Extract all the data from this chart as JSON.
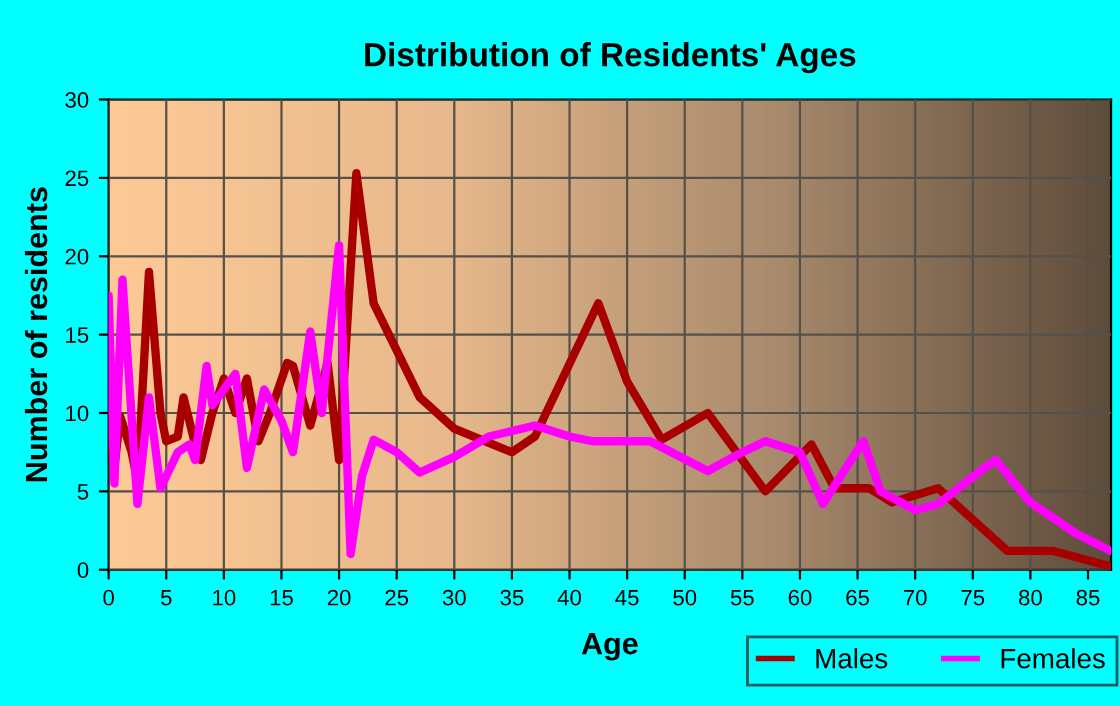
{
  "chart_data": {
    "type": "line",
    "title": "Distribution of Residents' Ages",
    "xlabel": "Age",
    "ylabel": "Number of residents",
    "xlim": [
      0,
      87
    ],
    "xticks": [
      0,
      5,
      10,
      15,
      20,
      25,
      30,
      35,
      40,
      45,
      50,
      55,
      60,
      65,
      70,
      75,
      80,
      85
    ],
    "ylim": [
      0,
      30
    ],
    "yticks": [
      0,
      5,
      10,
      15,
      20,
      25,
      30
    ],
    "grid": true,
    "legend": "bottom right",
    "marker": "none",
    "line_style": "solid",
    "series": [
      {
        "name": "Males",
        "color": "#a80000",
        "x": [
          0,
          0.5,
          1,
          2,
          2.5,
          3.5,
          4.5,
          5,
          6,
          6.5,
          7.5,
          8,
          9,
          10,
          11,
          12,
          13,
          14,
          15.5,
          16,
          17.5,
          19,
          20,
          21.5,
          23,
          25,
          27,
          30,
          35,
          37,
          42.5,
          45,
          48,
          52,
          57,
          61,
          63,
          66,
          68,
          72,
          78,
          82,
          87
        ],
        "values": [
          10,
          6.5,
          9.8,
          7.5,
          5.6,
          19,
          10,
          8.2,
          8.5,
          11,
          8,
          7,
          10,
          12.2,
          10,
          12.2,
          8.2,
          10,
          13.2,
          13,
          9.2,
          13.2,
          7,
          25.3,
          17,
          14,
          11,
          9,
          7.5,
          8.5,
          17,
          12,
          8.3,
          10,
          5,
          8,
          5.2,
          5.2,
          4.3,
          5.2,
          1.2,
          1.2,
          0.2
        ]
      },
      {
        "name": "Females",
        "color": "#ff00ff",
        "x": [
          0,
          0.5,
          1.2,
          2.5,
          3.5,
          4.5,
          6,
          7,
          7.5,
          8.5,
          9,
          10,
          11,
          12,
          13.5,
          15,
          16,
          17.5,
          18.5,
          20,
          21,
          22,
          23,
          25,
          27,
          30,
          33,
          37,
          40,
          42,
          47,
          52,
          55,
          57,
          60,
          62,
          64,
          65.5,
          67,
          70,
          72,
          76,
          77,
          80,
          84,
          87
        ],
        "values": [
          17.5,
          5.5,
          18.5,
          4.2,
          11,
          5.2,
          7.5,
          8,
          7,
          13,
          10.5,
          11.5,
          12.5,
          6.5,
          11.5,
          9.5,
          7.5,
          15.2,
          10,
          20.7,
          1,
          6,
          8.3,
          7.5,
          6.2,
          7.2,
          8.5,
          9.2,
          8.5,
          8.2,
          8.2,
          6.3,
          7.5,
          8.2,
          7.5,
          4.2,
          6.5,
          8.2,
          5,
          3.8,
          4.2,
          6.5,
          7,
          4.3,
          2.3,
          1.2
        ]
      }
    ]
  }
}
